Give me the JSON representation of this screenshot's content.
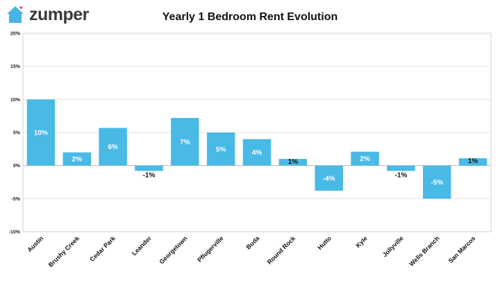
{
  "brand": {
    "name": "zumper",
    "color": "#4ab3e8",
    "heart_color": "#e8477a",
    "logo_icon": "house-heart-icon"
  },
  "chart_data": {
    "type": "bar",
    "title": "Yearly 1 Bedroom Rent Evolution",
    "xlabel": "",
    "ylabel": "",
    "categories": [
      "Austin",
      "Brushy Creek",
      "Cedar Park",
      "Leander",
      "Georgetown",
      "Pflugerville",
      "Buda",
      "Round Rock",
      "Hutto",
      "Kyle",
      "Jollyville",
      "Wells Branch",
      "San Marcos"
    ],
    "values": [
      10,
      2,
      5.7,
      -0.8,
      7.2,
      5,
      4,
      1,
      -3.8,
      2.1,
      -0.8,
      -5,
      1.1
    ],
    "data_labels": [
      "10%",
      "2%",
      "6%",
      "-1%",
      "7%",
      "5%",
      "4%",
      "1%",
      "-4%",
      "2%",
      "-1%",
      "-5%",
      "1%"
    ],
    "ylim": [
      -10,
      20
    ],
    "yticks": [
      -10,
      -5,
      0,
      5,
      10,
      15,
      20
    ],
    "ytick_labels": [
      "-10%",
      "-5%",
      "0%",
      "5%",
      "10%",
      "15%",
      "20%"
    ],
    "bar_color": "#49b9e6",
    "grid": true,
    "legend": "none"
  }
}
